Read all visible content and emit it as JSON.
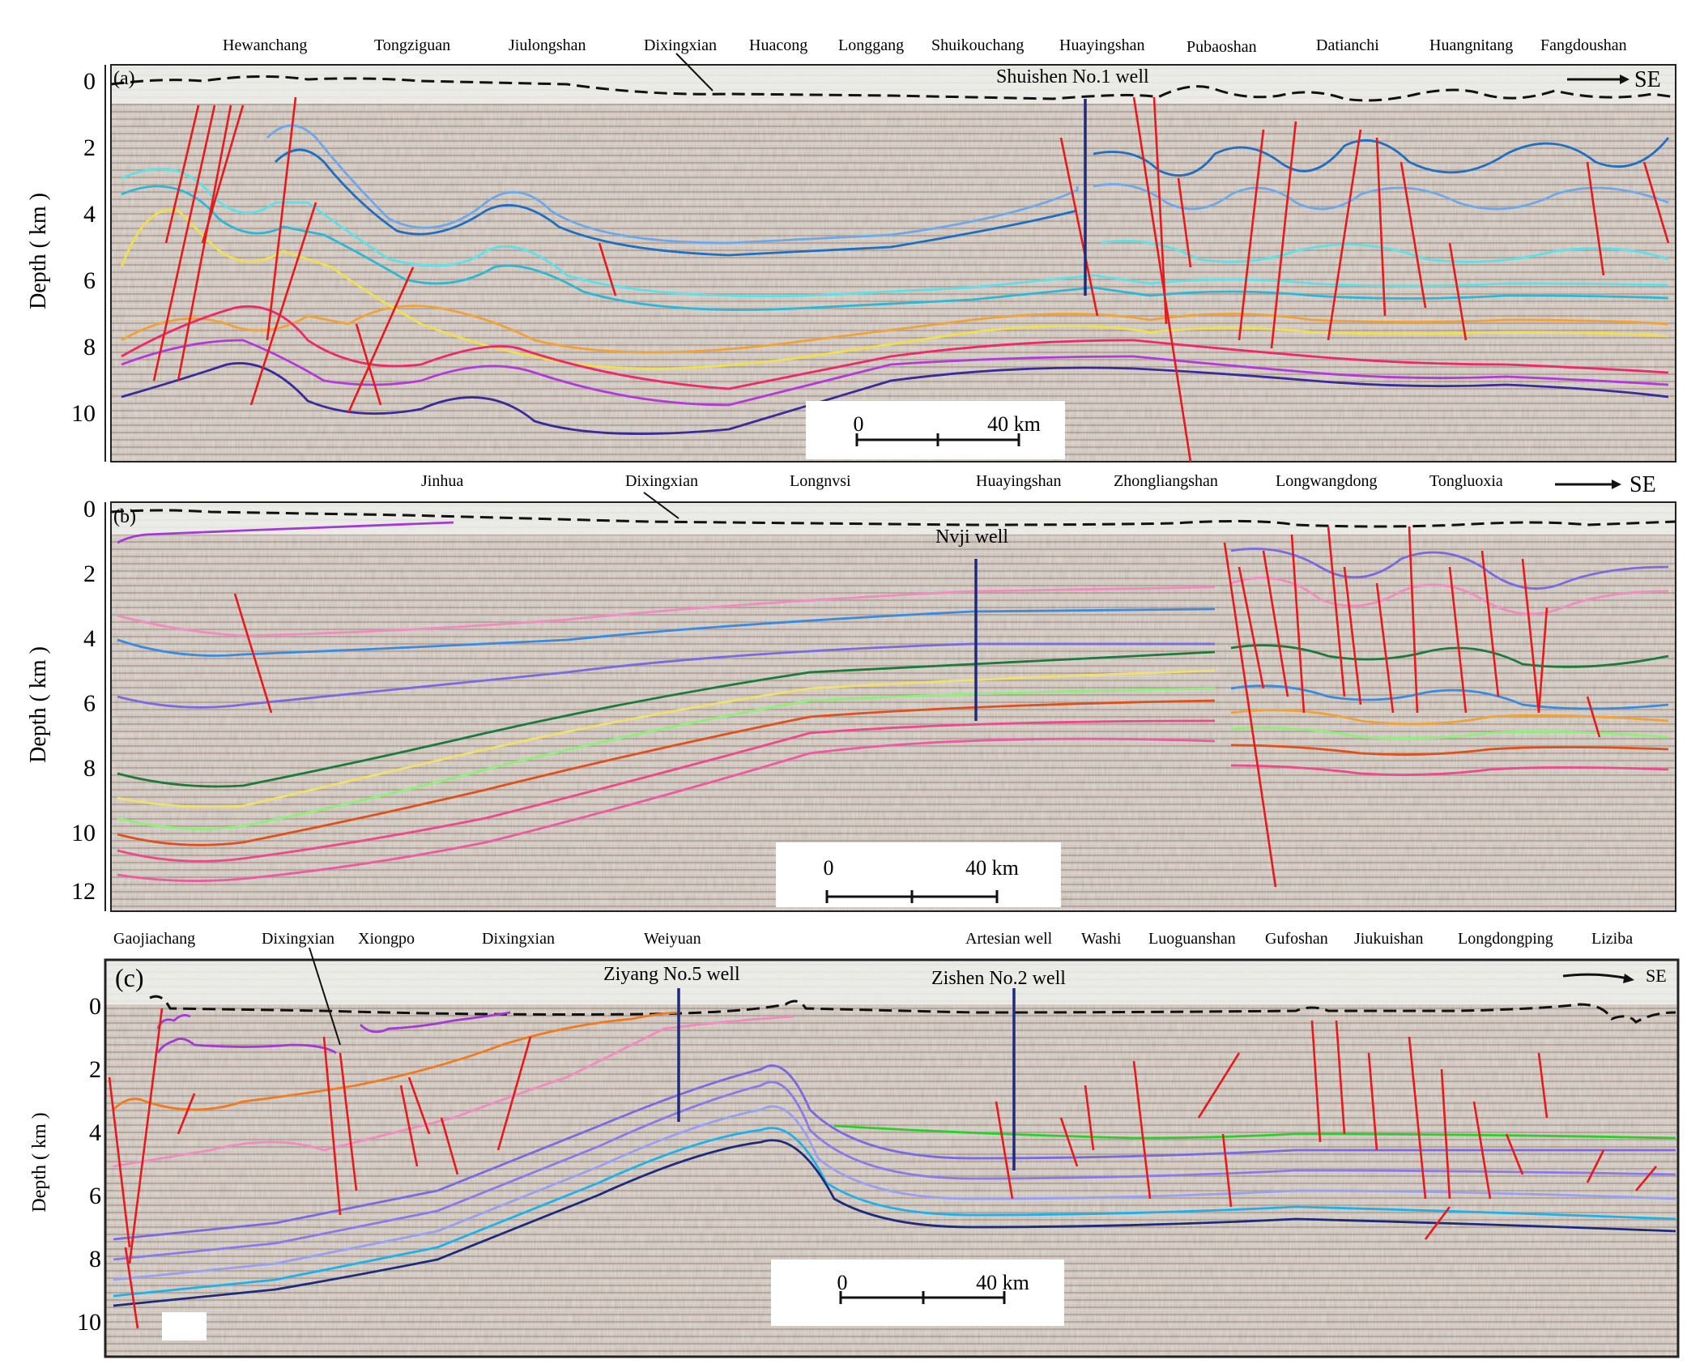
{
  "figure": {
    "panels": [
      {
        "label": "(a)",
        "locations": [
          "Hewanchang",
          "Tongziguan",
          "Jiulongshan",
          "Dixingxian",
          "Huacong",
          "Longgang",
          "Shuikouchang",
          "Huayingshan",
          "Pubaoshan",
          "Datianchi",
          "Huangnitang",
          "Fangdoushan"
        ],
        "wells": [
          "Shuishen No.1 well"
        ],
        "direction": "SE",
        "y_axis_label": "Depth ( km )",
        "y_ticks": [
          "0",
          "2",
          "4",
          "6",
          "8",
          "10"
        ],
        "scale_bar": {
          "start": "0",
          "end": "40 km"
        }
      },
      {
        "label": "(b)",
        "locations": [
          "Jinhua",
          "Dixingxian",
          "Longnvsi",
          "Huayingshan",
          "Zhongliangshan",
          "Longwangdong",
          "Tongluoxia"
        ],
        "wells": [
          "Nvji well"
        ],
        "direction": "SE",
        "y_axis_label": "Depth ( km )",
        "y_ticks": [
          "0",
          "2",
          "4",
          "6",
          "8",
          "10",
          "12"
        ],
        "scale_bar": {
          "start": "0",
          "end": "40 km"
        }
      },
      {
        "label": "(c)",
        "locations": [
          "Gaojiachang",
          "Dixingxian",
          "Xiongpo",
          "Dixingxian",
          "Weiyuan",
          "Artesian well",
          "Washi",
          "Luoguanshan",
          "Gufoshan",
          "Jiukuishan",
          "Longdongping",
          "Liziba"
        ],
        "wells": [
          "Ziyang No.5 well",
          "Zishen No.2 well"
        ],
        "direction": "SE",
        "y_axis_label": "Depth ( km )",
        "y_ticks": [
          "0",
          "2",
          "4",
          "6",
          "8",
          "10"
        ],
        "scale_bar": {
          "start": "0",
          "end": "40 km"
        }
      }
    ],
    "colors": {
      "fault": "#e8191c",
      "well": "#1f2a7a",
      "seismic_background": "#c9c3b6",
      "horizons_a": [
        "#6fa8e8",
        "#1f6ec0",
        "#5ee0e8",
        "#2cb7d6",
        "#f0a23a",
        "#f0e050",
        "#ec2a6b",
        "#b23ad8",
        "#3a2a9a"
      ],
      "horizons_b": [
        "#a23ad6",
        "#f08cc0",
        "#3a8ae0",
        "#7a6ae0",
        "#1e7a3a",
        "#f0e070",
        "#8ef07a",
        "#e0501e",
        "#ec4a8a",
        "#ec5aa0"
      ],
      "horizons_c": [
        "#a23ad6",
        "#f07a20",
        "#f08cc0",
        "#8a7ae8",
        "#7a6ae0",
        "#2ad02a",
        "#9aa0f0",
        "#20b0e8",
        "#1e2a7a"
      ]
    }
  }
}
